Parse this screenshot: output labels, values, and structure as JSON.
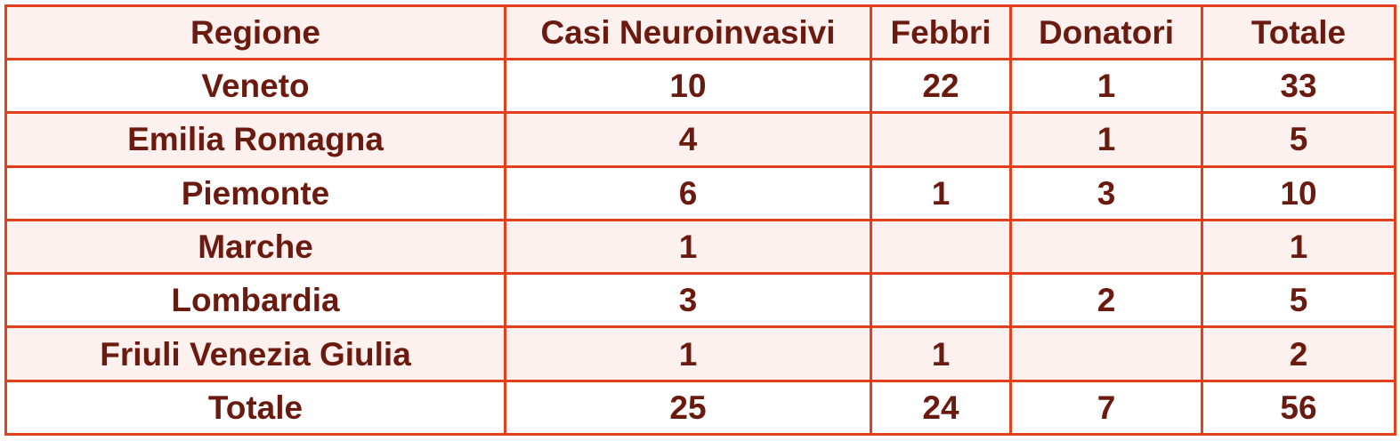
{
  "table": {
    "headers": [
      "Regione",
      "Casi Neuroinvasivi",
      "Febbri",
      "Donatori",
      "Totale"
    ],
    "rows": [
      [
        "Veneto",
        "10",
        "22",
        "1",
        "33"
      ],
      [
        "Emilia Romagna",
        "4",
        "",
        "1",
        "5"
      ],
      [
        "Piemonte",
        "6",
        "1",
        "3",
        "10"
      ],
      [
        "Marche",
        "1",
        "",
        "",
        "1"
      ],
      [
        "Lombardia",
        "3",
        "",
        "2",
        "5"
      ],
      [
        "Friuli Venezia Giulia",
        "1",
        "1",
        "",
        "2"
      ],
      [
        "Totale",
        "25",
        "24",
        "7",
        "56"
      ]
    ]
  },
  "colors": {
    "border": "#e2401c",
    "text": "#6b1a0f",
    "shaded_row": "#fdf1ef",
    "plain_row": "#ffffff"
  }
}
